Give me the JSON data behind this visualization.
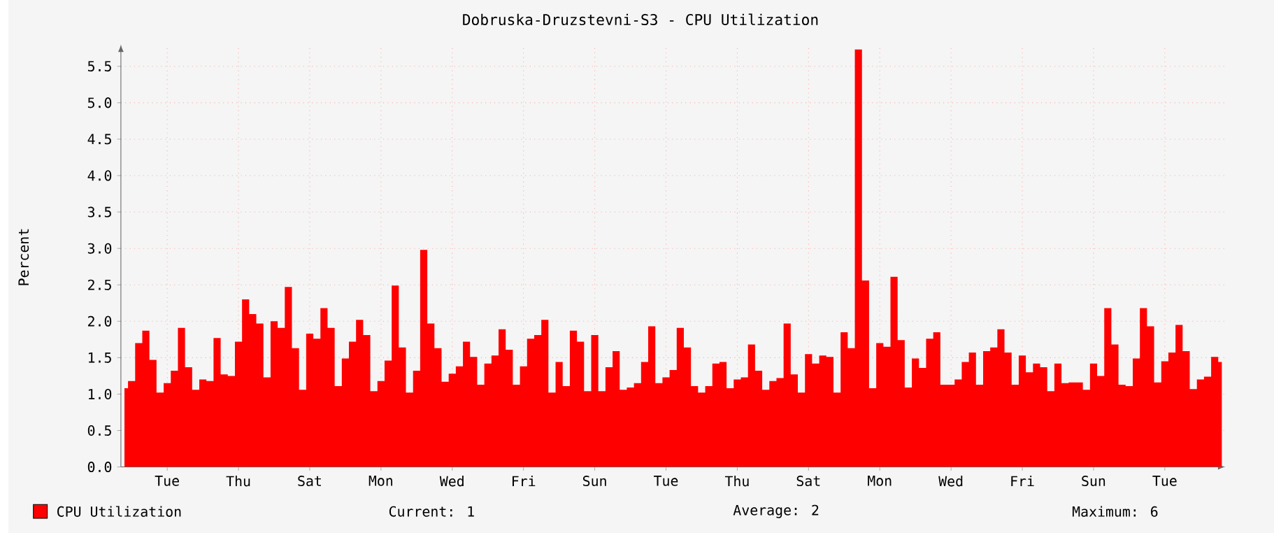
{
  "chart_data": {
    "type": "area",
    "title": "Dobruska-Druzstevni-S3 - CPU Utilization",
    "ylabel": "Percent",
    "categories": [
      null,
      null,
      null,
      null,
      null,
      null,
      "Tue",
      null,
      null,
      null,
      null,
      null,
      null,
      null,
      null,
      null,
      "Thu",
      null,
      null,
      null,
      null,
      null,
      null,
      null,
      null,
      null,
      "Sat",
      null,
      null,
      null,
      null,
      null,
      null,
      null,
      null,
      null,
      "Mon",
      null,
      null,
      null,
      null,
      null,
      null,
      null,
      null,
      null,
      "Wed",
      null,
      null,
      null,
      null,
      null,
      null,
      null,
      null,
      null,
      "Fri",
      null,
      null,
      null,
      null,
      null,
      null,
      null,
      null,
      null,
      "Sun",
      null,
      null,
      null,
      null,
      null,
      null,
      null,
      null,
      null,
      "Tue",
      null,
      null,
      null,
      null,
      null,
      null,
      null,
      null,
      null,
      "Thu",
      null,
      null,
      null,
      null,
      null,
      null,
      null,
      null,
      null,
      "Sat",
      null,
      null,
      null,
      null,
      null,
      null,
      null,
      null,
      null,
      "Mon",
      null,
      null,
      null,
      null,
      null,
      null,
      null,
      null,
      null,
      "Wed",
      null,
      null,
      null,
      null,
      null,
      null,
      null,
      null,
      null,
      "Fri",
      null,
      null,
      null,
      null,
      null,
      null,
      null,
      null,
      null,
      "Sun",
      null,
      null,
      null,
      null,
      null,
      null,
      null,
      null,
      null,
      "Tue",
      null,
      null,
      null,
      null,
      null,
      null,
      null,
      null
    ],
    "ylim": [
      0,
      5.8
    ],
    "yticks": [
      {
        "value": 0,
        "label": "0.0"
      },
      {
        "value": 0.5,
        "label": "0.5"
      },
      {
        "value": 1,
        "label": "1.0"
      },
      {
        "value": 1.5,
        "label": "1.5"
      },
      {
        "value": 2,
        "label": "2.0"
      },
      {
        "value": 2.5,
        "label": "2.5"
      },
      {
        "value": 3,
        "label": "3.0"
      },
      {
        "value": 3.5,
        "label": "3.5"
      },
      {
        "value": 4,
        "label": "4.0"
      },
      {
        "value": 4.5,
        "label": "4.5"
      },
      {
        "value": 5,
        "label": "5.0"
      },
      {
        "value": 5.5,
        "label": "5.5"
      }
    ],
    "grid": true,
    "legend": "bottom",
    "annotations": [
      "Current: 1",
      "Average: 2",
      "Maximum: 6"
    ],
    "series": [
      {
        "name": "CPU Utilization",
        "color": "#ff0000",
        "values": [
          1.08,
          1.18,
          1.7,
          1.87,
          1.47,
          1.02,
          1.15,
          1.32,
          1.91,
          1.37,
          1.06,
          1.2,
          1.18,
          1.77,
          1.27,
          1.25,
          1.72,
          2.3,
          2.1,
          1.97,
          1.23,
          2.0,
          1.91,
          2.47,
          1.63,
          1.06,
          1.83,
          1.76,
          2.18,
          1.91,
          1.11,
          1.49,
          1.72,
          2.02,
          1.81,
          1.04,
          1.18,
          1.46,
          2.49,
          1.64,
          1.02,
          1.32,
          2.98,
          1.97,
          1.63,
          1.17,
          1.28,
          1.38,
          1.72,
          1.51,
          1.13,
          1.42,
          1.53,
          1.89,
          1.61,
          1.13,
          1.38,
          1.76,
          1.81,
          2.02,
          1.02,
          1.44,
          1.11,
          1.87,
          1.72,
          1.04,
          1.81,
          1.04,
          1.37,
          1.59,
          1.06,
          1.09,
          1.15,
          1.44,
          1.93,
          1.15,
          1.23,
          1.33,
          1.91,
          1.64,
          1.11,
          1.02,
          1.11,
          1.42,
          1.44,
          1.08,
          1.2,
          1.23,
          1.68,
          1.32,
          1.06,
          1.18,
          1.22,
          1.97,
          1.27,
          1.02,
          1.55,
          1.42,
          1.53,
          1.51,
          1.02,
          1.85,
          1.63,
          5.73,
          2.56,
          1.08,
          1.7,
          1.65,
          2.61,
          1.74,
          1.09,
          1.49,
          1.36,
          1.76,
          1.85,
          1.13,
          1.13,
          1.2,
          1.44,
          1.57,
          1.13,
          1.59,
          1.64,
          1.89,
          1.57,
          1.13,
          1.53,
          1.3,
          1.42,
          1.37,
          1.04,
          1.42,
          1.15,
          1.16,
          1.16,
          1.06,
          1.42,
          1.25,
          2.18,
          1.68,
          1.13,
          1.11,
          1.49,
          2.18,
          1.93,
          1.16,
          1.45,
          1.57,
          1.95,
          1.59,
          1.07,
          1.2,
          1.24,
          1.51,
          1.44
        ]
      }
    ]
  }
}
